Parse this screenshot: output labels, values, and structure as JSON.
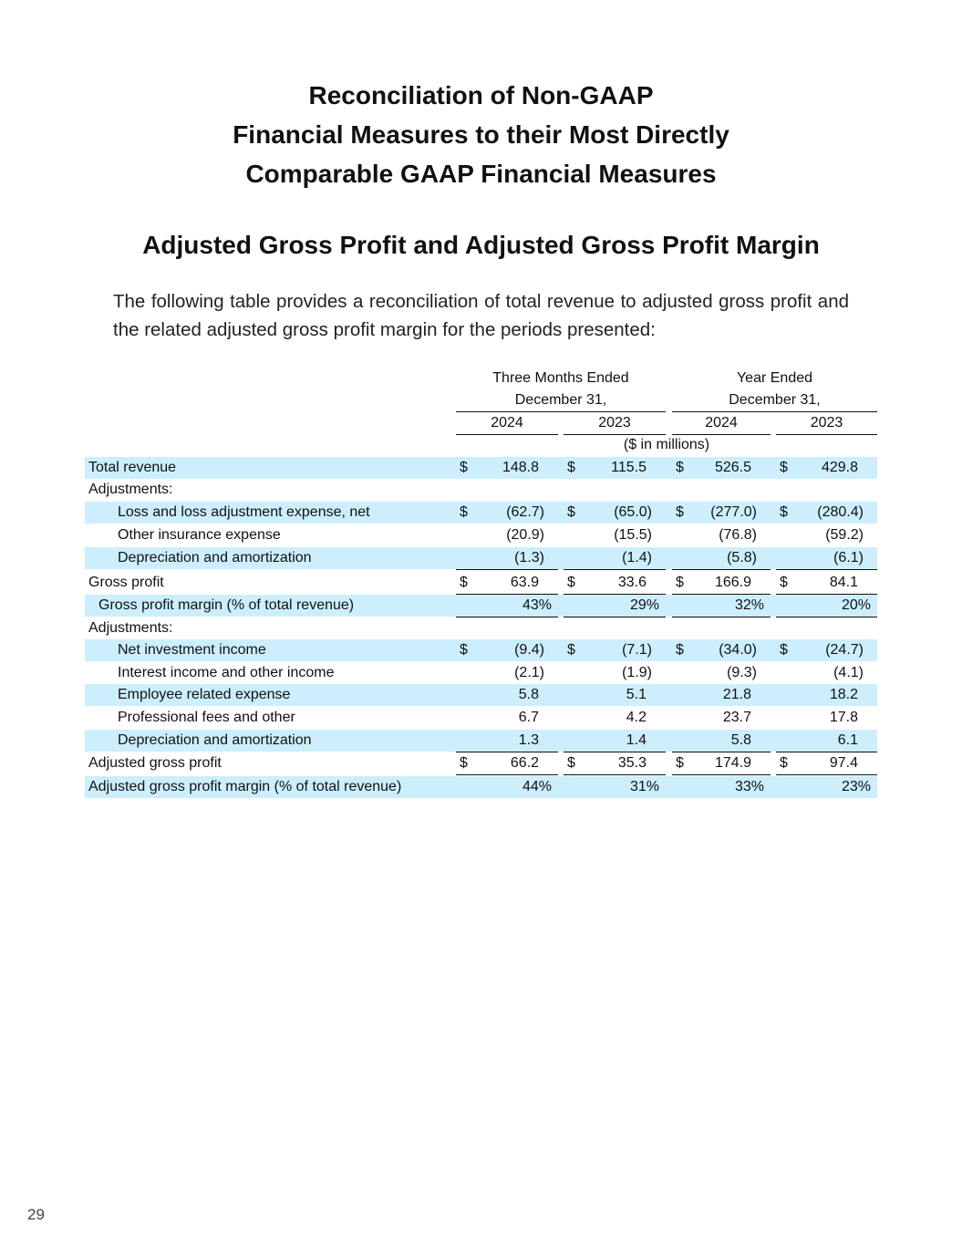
{
  "header": {
    "title_lines": [
      "Reconciliation of Non-GAAP",
      "Financial Measures to their Most Directly",
      "Comparable GAAP Financial Measures"
    ],
    "subtitle": "Adjusted Gross Profit and Adjusted Gross Profit Margin",
    "intro": "The following table provides a reconciliation of total revenue to adjusted gross profit and the related adjusted gross profit margin for the periods presented:"
  },
  "table": {
    "column_groups": [
      {
        "lines": [
          "Three Months Ended",
          "December 31,"
        ]
      },
      {
        "lines": [
          "Year Ended",
          "December 31,"
        ]
      }
    ],
    "years": [
      "2024",
      "2023",
      "2024",
      "2023"
    ],
    "units": "($ in millions)",
    "rows": [
      {
        "label": "Total revenue",
        "cells": [
          {
            "currency": "$",
            "value": "148.8"
          },
          {
            "currency": "$",
            "value": "115.5"
          },
          {
            "currency": "$",
            "value": "526.5"
          },
          {
            "currency": "$",
            "value": "429.8"
          }
        ]
      },
      {
        "label": "Adjustments:",
        "cells": []
      },
      {
        "label": "Loss and loss adjustment expense, net",
        "cells": [
          {
            "currency": "$",
            "value": "(62.7)"
          },
          {
            "currency": "$",
            "value": "(65.0)"
          },
          {
            "currency": "$",
            "value": "(277.0)"
          },
          {
            "currency": "$",
            "value": "(280.4)"
          }
        ]
      },
      {
        "label": "Other insurance expense",
        "cells": [
          {
            "value": "(20.9)"
          },
          {
            "value": "(15.5)"
          },
          {
            "value": "(76.8)"
          },
          {
            "value": "(59.2)"
          }
        ]
      },
      {
        "label": "Depreciation and amortization",
        "cells": [
          {
            "value": "(1.3)"
          },
          {
            "value": "(1.4)"
          },
          {
            "value": "(5.8)"
          },
          {
            "value": "(6.1)"
          }
        ]
      },
      {
        "label": "Gross profit",
        "cells": [
          {
            "currency": "$",
            "value": "63.9"
          },
          {
            "currency": "$",
            "value": "33.6"
          },
          {
            "currency": "$",
            "value": "166.9"
          },
          {
            "currency": "$",
            "value": "84.1"
          }
        ]
      },
      {
        "label": "Gross profit margin (% of total revenue)",
        "cells": [
          {
            "value": "43%"
          },
          {
            "value": "29%"
          },
          {
            "value": "32%"
          },
          {
            "value": "20%"
          }
        ]
      },
      {
        "label": "Adjustments:",
        "cells": []
      },
      {
        "label": "Net investment income",
        "cells": [
          {
            "currency": "$",
            "value": "(9.4)"
          },
          {
            "currency": "$",
            "value": "(7.1)"
          },
          {
            "currency": "$",
            "value": "(34.0)"
          },
          {
            "currency": "$",
            "value": "(24.7)"
          }
        ]
      },
      {
        "label": "Interest income and other income",
        "cells": [
          {
            "value": "(2.1)"
          },
          {
            "value": "(1.9)"
          },
          {
            "value": "(9.3)"
          },
          {
            "value": "(4.1)"
          }
        ]
      },
      {
        "label": "Employee related expense",
        "cells": [
          {
            "value": "5.8"
          },
          {
            "value": "5.1"
          },
          {
            "value": "21.8"
          },
          {
            "value": "18.2"
          }
        ]
      },
      {
        "label": "Professional fees and other",
        "cells": [
          {
            "value": "6.7"
          },
          {
            "value": "4.2"
          },
          {
            "value": "23.7"
          },
          {
            "value": "17.8"
          }
        ]
      },
      {
        "label": "Depreciation and amortization",
        "cells": [
          {
            "value": "1.3"
          },
          {
            "value": "1.4"
          },
          {
            "value": "5.8"
          },
          {
            "value": "6.1"
          }
        ]
      },
      {
        "label": "Adjusted gross profit",
        "cells": [
          {
            "currency": "$",
            "value": "66.2"
          },
          {
            "currency": "$",
            "value": "35.3"
          },
          {
            "currency": "$",
            "value": "174.9"
          },
          {
            "currency": "$",
            "value": "97.4"
          }
        ]
      },
      {
        "label": "Adjusted gross profit margin (% of total revenue)",
        "cells": [
          {
            "value": "44%"
          },
          {
            "value": "31%"
          },
          {
            "value": "33%"
          },
          {
            "value": "23%"
          }
        ]
      }
    ]
  },
  "footer": {
    "page_number": "29"
  }
}
